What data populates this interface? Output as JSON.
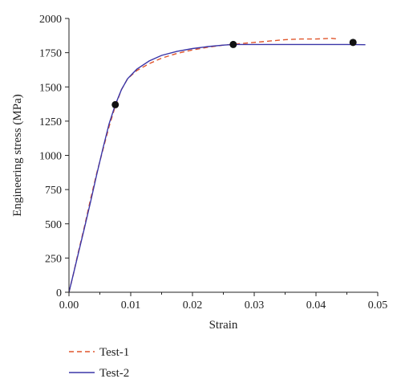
{
  "chart_data": {
    "type": "line",
    "title": "",
    "xlabel": "Strain",
    "ylabel": "Engineering stress (MPa)",
    "xlim": [
      0,
      0.05
    ],
    "ylim": [
      0,
      2000
    ],
    "x_ticks": [
      "0.00",
      "0.01",
      "0.02",
      "0.03",
      "0.04",
      "0.05"
    ],
    "y_ticks": [
      "0",
      "250",
      "500",
      "750",
      "1000",
      "1250",
      "1500",
      "1750",
      "2000"
    ],
    "grid": false,
    "legend_position": "bottom-left, below the plot",
    "series": [
      {
        "name": "Test-1",
        "color": "#e0552b",
        "dash": "dashed",
        "points": [
          [
            0.0,
            0
          ],
          [
            0.0007,
            130
          ],
          [
            0.0015,
            290
          ],
          [
            0.0025,
            480
          ],
          [
            0.0035,
            680
          ],
          [
            0.0045,
            870
          ],
          [
            0.0055,
            1040
          ],
          [
            0.0065,
            1210
          ],
          [
            0.0075,
            1360
          ],
          [
            0.0085,
            1480
          ],
          [
            0.0095,
            1560
          ],
          [
            0.011,
            1620
          ],
          [
            0.013,
            1670
          ],
          [
            0.015,
            1710
          ],
          [
            0.0175,
            1745
          ],
          [
            0.02,
            1770
          ],
          [
            0.0225,
            1790
          ],
          [
            0.025,
            1805
          ],
          [
            0.0275,
            1815
          ],
          [
            0.03,
            1825
          ],
          [
            0.0325,
            1835
          ],
          [
            0.035,
            1845
          ],
          [
            0.0375,
            1850
          ],
          [
            0.04,
            1850
          ],
          [
            0.0425,
            1855
          ],
          [
            0.0435,
            1850
          ]
        ]
      },
      {
        "name": "Test-2",
        "color": "#3a36a8",
        "dash": "solid",
        "points": [
          [
            0.0,
            0
          ],
          [
            0.0008,
            150
          ],
          [
            0.0016,
            300
          ],
          [
            0.0025,
            470
          ],
          [
            0.0035,
            660
          ],
          [
            0.0045,
            860
          ],
          [
            0.0055,
            1050
          ],
          [
            0.0065,
            1230
          ],
          [
            0.0075,
            1370
          ],
          [
            0.0085,
            1480
          ],
          [
            0.0095,
            1560
          ],
          [
            0.011,
            1630
          ],
          [
            0.013,
            1690
          ],
          [
            0.015,
            1730
          ],
          [
            0.0175,
            1760
          ],
          [
            0.02,
            1780
          ],
          [
            0.0225,
            1795
          ],
          [
            0.025,
            1805
          ],
          [
            0.0265,
            1810
          ],
          [
            0.03,
            1810
          ],
          [
            0.035,
            1810
          ],
          [
            0.04,
            1810
          ],
          [
            0.045,
            1810
          ],
          [
            0.048,
            1808
          ]
        ]
      }
    ],
    "markers": [
      {
        "x": 0.0075,
        "y": 1370
      },
      {
        "x": 0.0266,
        "y": 1810
      },
      {
        "x": 0.046,
        "y": 1825
      }
    ]
  }
}
